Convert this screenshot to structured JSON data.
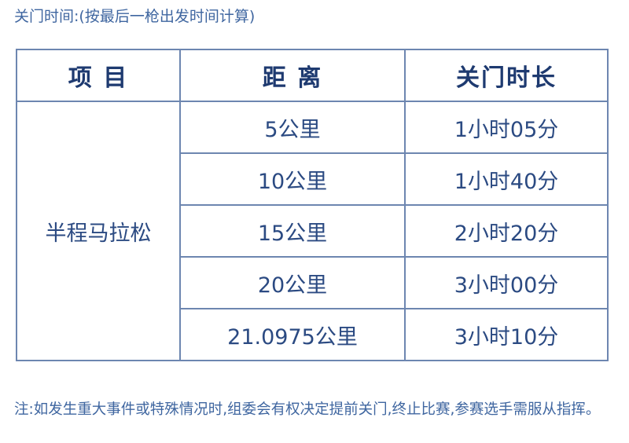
{
  "caption": "关门时间:(按最后一枪出发时间计算)",
  "table": {
    "headers": [
      "项 目",
      "距 离",
      "关门时长"
    ],
    "event": "半程马拉松",
    "rows": [
      {
        "distance": "5公里",
        "time": "1小时05分"
      },
      {
        "distance": "10公里",
        "time": "1小时40分"
      },
      {
        "distance": "15公里",
        "time": "2小时20分"
      },
      {
        "distance": "20公里",
        "time": "3小时00分"
      },
      {
        "distance": "21.0975公里",
        "time": "3小时10分"
      }
    ]
  },
  "note": "注:如发生重大事件或特殊情况时,组委会有权决定提前关门,终止比赛,参赛选手需服从指挥。",
  "colors": {
    "text": "#3f66a0",
    "header": "#1e3a70",
    "border": "#6d86b0"
  }
}
